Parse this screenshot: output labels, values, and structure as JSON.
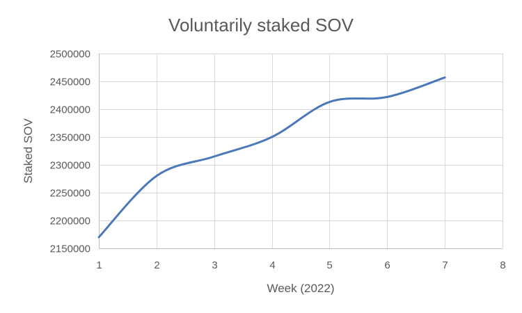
{
  "chart_data": {
    "type": "line",
    "title": "Voluntarily staked SOV",
    "xlabel": "Week (2022)",
    "ylabel": "Staked SOV",
    "xlim": [
      1,
      8
    ],
    "ylim": [
      2150000,
      2500000
    ],
    "x_ticks": [
      1,
      2,
      3,
      4,
      5,
      6,
      7,
      8
    ],
    "y_ticks": [
      2150000,
      2200000,
      2250000,
      2300000,
      2350000,
      2400000,
      2450000,
      2500000
    ],
    "x_tick_labels": [
      "1",
      "2",
      "3",
      "4",
      "5",
      "6",
      "7",
      "8"
    ],
    "y_tick_labels": [
      "2150000",
      "2200000",
      "2250000",
      "2300000",
      "2350000",
      "2400000",
      "2450000",
      "2500000"
    ],
    "grid": true,
    "smooth": true,
    "series": [
      {
        "color": "#4a78b8",
        "x": [
          1,
          2,
          3,
          4,
          5,
          6,
          7
        ],
        "y": [
          2170000,
          2280000,
          2315000,
          2350000,
          2413000,
          2422000,
          2457000
        ]
      }
    ]
  }
}
